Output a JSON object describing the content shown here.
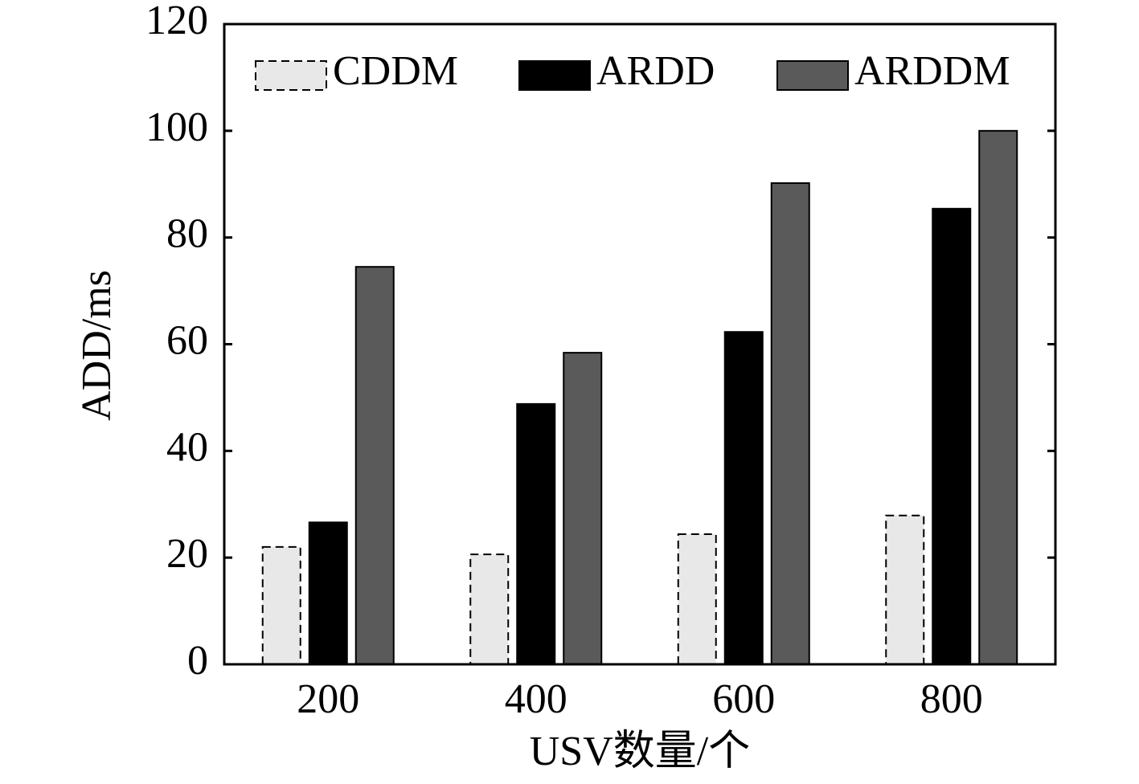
{
  "chart_data": {
    "type": "bar",
    "x_label": "USV数量/个",
    "y_label": "ADD/ms",
    "categories": [
      "200",
      "400",
      "600",
      "800"
    ],
    "series": [
      {
        "name": "CDDM",
        "color": "#e8e8e8",
        "line_style": "dashed",
        "values": [
          22.0,
          20.6,
          24.4,
          27.9
        ]
      },
      {
        "name": "ARDD",
        "color": "#000000",
        "line_style": "solid",
        "values": [
          26.6,
          48.8,
          62.3,
          85.4
        ]
      },
      {
        "name": "ARDDM",
        "color": "#5a5a5a",
        "line_style": "solid",
        "values": [
          74.5,
          58.4,
          90.2,
          100
        ]
      }
    ],
    "ylim": [
      0,
      120
    ],
    "yticks": [
      0,
      20,
      40,
      60,
      80,
      100,
      120
    ],
    "legend": "top",
    "grid": false
  }
}
